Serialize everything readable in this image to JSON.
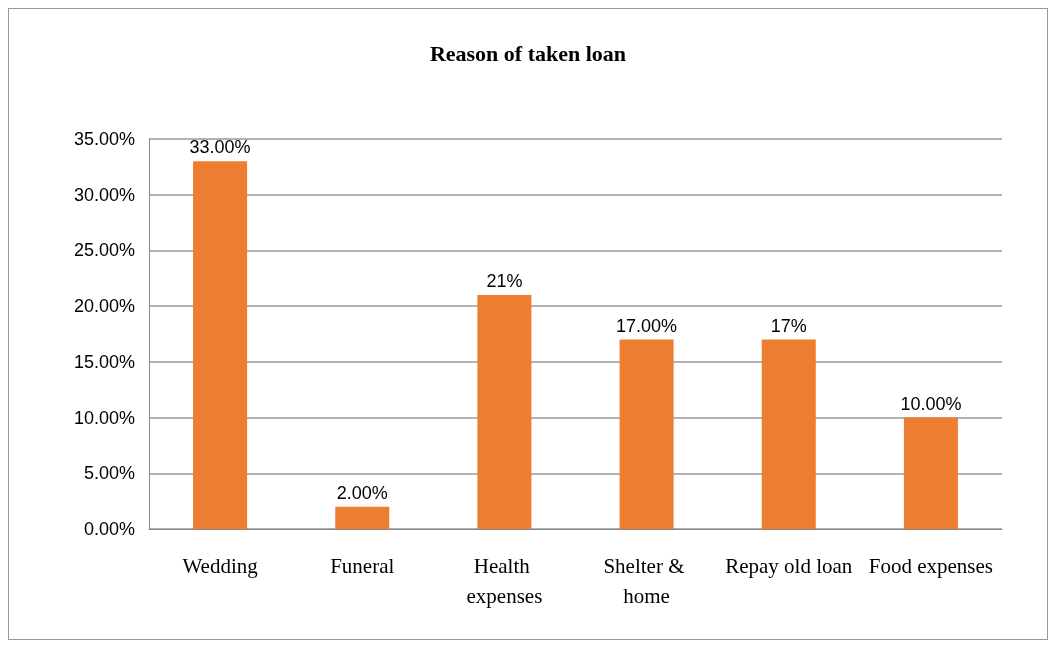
{
  "chart_data": {
    "type": "bar",
    "title": "Reason of taken loan",
    "categories": [
      "Wedding",
      "Funeral",
      "Health expenses",
      "Shelter & home",
      "Repay old loan",
      "Food expenses"
    ],
    "values": [
      33,
      2,
      21,
      17,
      17,
      10
    ],
    "value_labels": [
      "33.00%",
      "2.00%",
      "21%",
      "17.00%",
      "17%",
      "10.00%"
    ],
    "color": "#ed7d31",
    "ylim": [
      0,
      35
    ],
    "yticks": [
      {
        "value": 0,
        "label": "0.00%"
      },
      {
        "value": 5,
        "label": "5.00%"
      },
      {
        "value": 10,
        "label": "10.00%"
      },
      {
        "value": 15,
        "label": "15.00%"
      },
      {
        "value": 20,
        "label": "20.00%"
      },
      {
        "value": 25,
        "label": "25.00%"
      },
      {
        "value": 30,
        "label": "30.00%"
      },
      {
        "value": 35,
        "label": "35.00%"
      }
    ],
    "grid": true
  }
}
